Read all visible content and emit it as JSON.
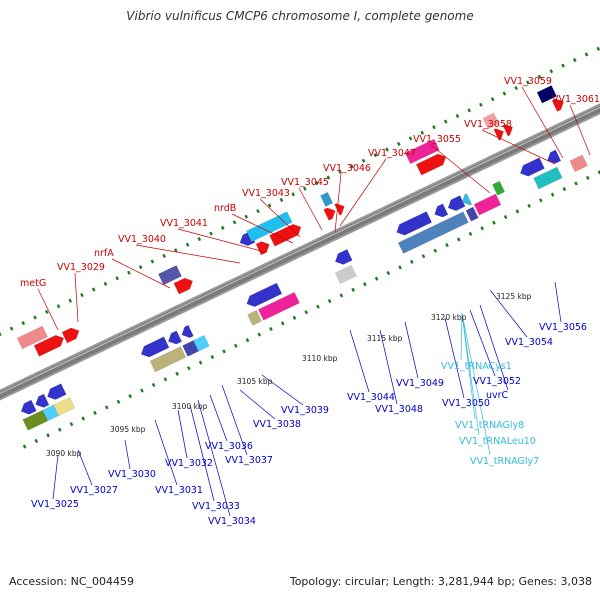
{
  "title": "Vibrio vulnificus CMCP6 chromosome I, complete genome",
  "footer": {
    "accession": "Accession: NC_004459",
    "summary": "Topology: circular; Length: 3,281,944 bp; Genes: 3,038"
  },
  "colors": {
    "backbone": "#7a7a7a",
    "track_dots": "#1e7d1e",
    "label_forward": "#cc0000",
    "label_reverse": "#0000cc",
    "label_rna": "#33bbdd"
  },
  "kbp_ticks": [
    "3090 kbp",
    "3095 kbp",
    "3100 kbp",
    "3105 kbp",
    "3110 kbp",
    "3115 kbp",
    "3120 kbp",
    "3125 kbp"
  ],
  "forward_labels": [
    "metG",
    "VV1_3029",
    "nrfA",
    "VV1_3040",
    "VV1_3041",
    "nrdB",
    "VV1_3043",
    "VV1_3045",
    "VV1_3046",
    "VV1_3047",
    "VV1_3055",
    "VV1_3058",
    "VV1_3059",
    "VV1_3061"
  ],
  "reverse_labels": [
    "VV1_3025",
    "VV1_3027",
    "VV1_3030",
    "VV1_3031",
    "VV1_3032",
    "VV1_3033",
    "VV1_3034",
    "VV1_3036",
    "VV1_3037",
    "VV1_3038",
    "VV1_3039",
    "VV1_3044",
    "VV1_3048",
    "VV1_3049",
    "VV1_3050",
    "VV1_3052",
    "uvrC",
    "VV1_3054",
    "VV1_3056"
  ],
  "rna_labels": [
    "VV1_tRNACys1",
    "VV1_tRNAGly8",
    "VV1_tRNALeu10",
    "VV1_tRNAGly7"
  ]
}
